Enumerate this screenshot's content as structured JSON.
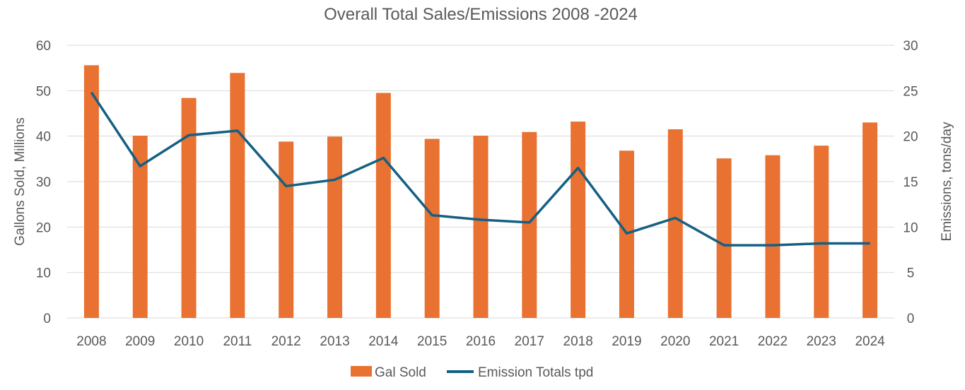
{
  "chart_data": {
    "type": "bar+line",
    "title": "Overall Total Sales/Emissions 2008 -2024",
    "ylabel": "Gallons Sold, Millions",
    "y2label": "Emissions, tons/day",
    "ylim": [
      0,
      60
    ],
    "y2lim": [
      0,
      30
    ],
    "yticks": [
      0,
      10,
      20,
      30,
      40,
      50,
      60
    ],
    "y2ticks": [
      0,
      5,
      10,
      15,
      20,
      25,
      30
    ],
    "grid": true,
    "legend_position": "bottom",
    "categories": [
      "2008",
      "2009",
      "2010",
      "2011",
      "2012",
      "2013",
      "2014",
      "2015",
      "2016",
      "2017",
      "2018",
      "2019",
      "2020",
      "2021",
      "2022",
      "2023",
      "2024"
    ],
    "series": [
      {
        "name": "Gal Sold",
        "type": "bar",
        "axis": "left",
        "color": "#E97132",
        "values": [
          55.6,
          40.1,
          48.4,
          53.9,
          38.8,
          39.9,
          49.5,
          39.4,
          40.1,
          40.9,
          43.2,
          36.8,
          41.5,
          35.1,
          35.8,
          37.9,
          43.0
        ]
      },
      {
        "name": "Emission Totals tpd",
        "type": "line",
        "axis": "right",
        "color": "#156082",
        "values": [
          24.8,
          16.7,
          20.1,
          20.6,
          14.5,
          15.2,
          17.6,
          11.3,
          10.8,
          10.5,
          16.5,
          9.3,
          11.0,
          8.0,
          8.0,
          8.2,
          8.2
        ]
      }
    ]
  }
}
